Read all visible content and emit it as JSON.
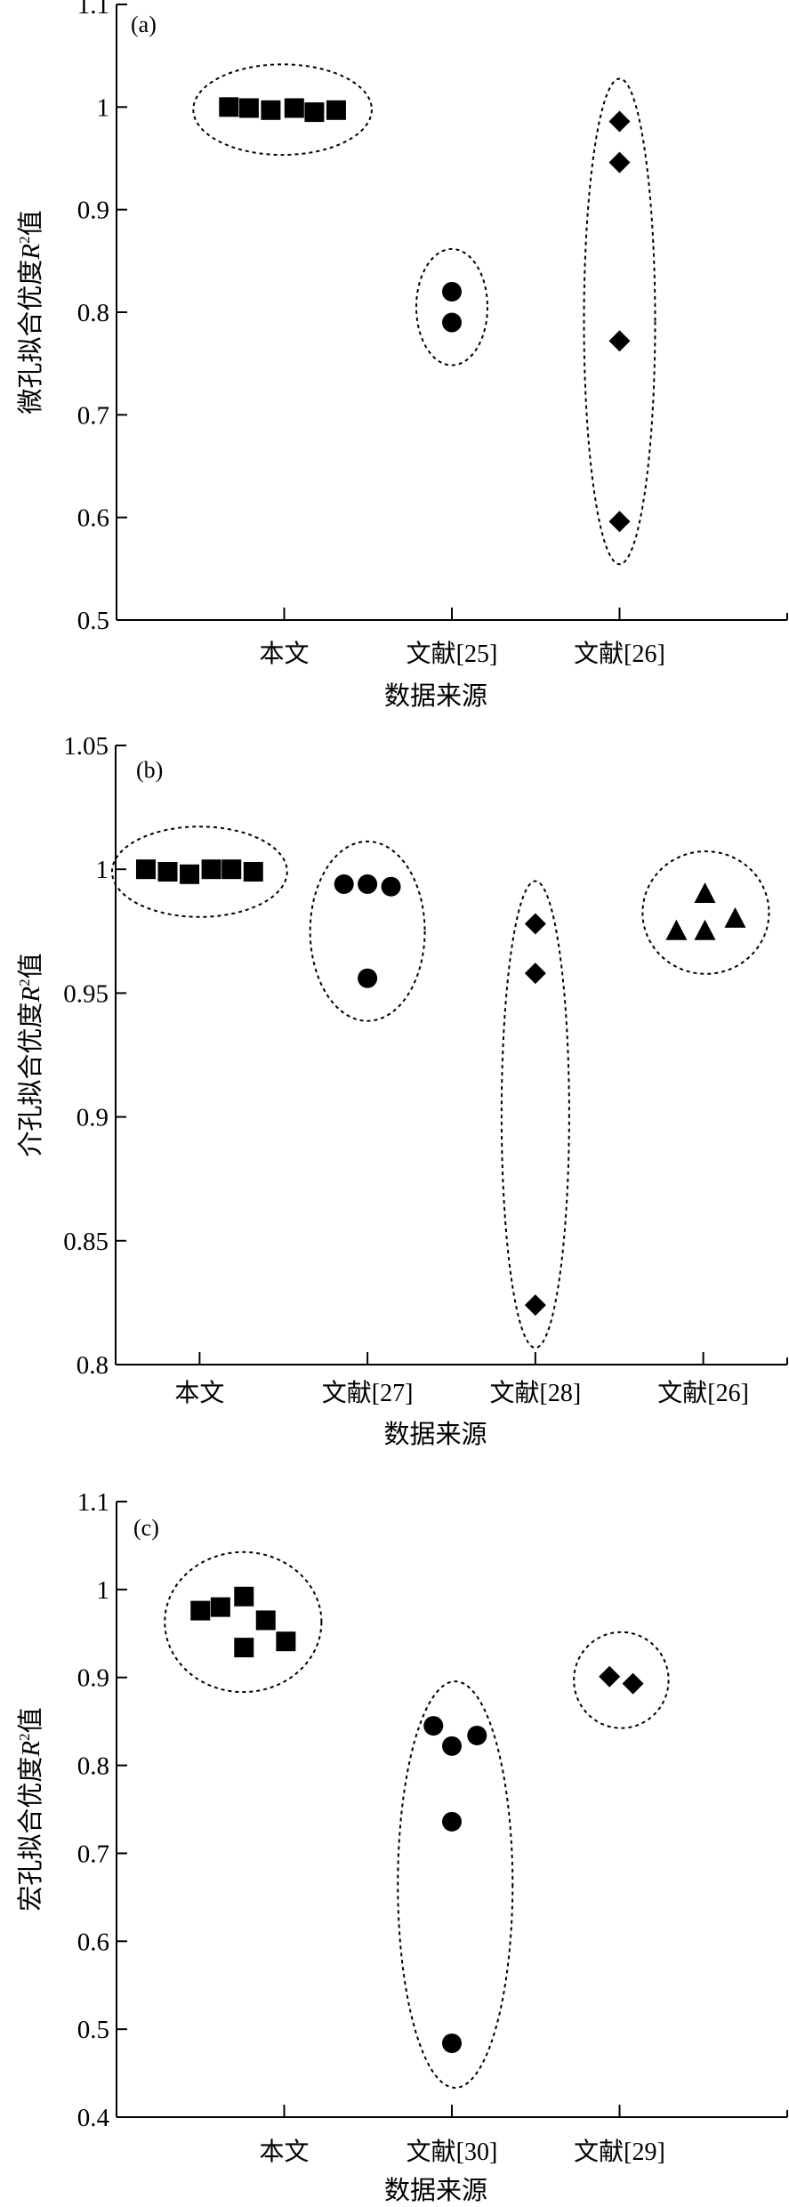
{
  "chart_data": [
    {
      "type": "scatter",
      "panel_label": "(a)",
      "ylabel_prefix": "微孔拟合优度",
      "ylabel_var": "R",
      "ylabel_sup": "2",
      "ylabel_suffix": "值",
      "xlabel": "数据来源",
      "categories": [
        "本文",
        "文献[25]",
        "文献[26]"
      ],
      "xlim": [
        0,
        4
      ],
      "ylim": [
        0.5,
        1.1
      ],
      "yticks": [
        0.5,
        0.6,
        0.7,
        0.8,
        0.9,
        1.0,
        1.1
      ],
      "ytick_labels": [
        "0.5",
        "0.6",
        "0.7",
        "0.8",
        "0.9",
        "1",
        "1.1"
      ],
      "grid": false,
      "series": [
        {
          "name": "本文",
          "marker": "square",
          "x": [
            0.67,
            0.79,
            0.92,
            1.06,
            1.18,
            1.31
          ],
          "y": [
            1.0,
            0.999,
            0.997,
            0.999,
            0.995,
            0.997
          ]
        },
        {
          "name": "文献[25]",
          "marker": "circle",
          "x": [
            2,
            2
          ],
          "y": [
            0.82,
            0.79
          ]
        },
        {
          "name": "文献[26]",
          "marker": "diamond",
          "x": [
            3,
            3,
            3,
            3
          ],
          "y": [
            0.986,
            0.946,
            0.772,
            0.596
          ]
        }
      ]
    },
    {
      "type": "scatter",
      "panel_label": "(b)",
      "ylabel_prefix": "介孔拟合优度",
      "ylabel_var": "R",
      "ylabel_sup": "2",
      "ylabel_suffix": "值",
      "xlabel": "数据来源",
      "categories": [
        "本文",
        "文献[27]",
        "文献[28]",
        "文献[26]"
      ],
      "xlim": [
        0.5,
        4.5
      ],
      "ylim": [
        0.8,
        1.05
      ],
      "yticks": [
        0.8,
        0.85,
        0.9,
        0.95,
        1.0,
        1.05
      ],
      "ytick_labels": [
        "0.8",
        "0.85",
        "0.9",
        "0.95",
        "1",
        "1.05"
      ],
      "grid": false,
      "series": [
        {
          "name": "本文",
          "marker": "square",
          "x": [
            0.68,
            0.81,
            0.94,
            1.07,
            1.19,
            1.32
          ],
          "y": [
            1.0,
            0.999,
            0.998,
            1.0,
            1.0,
            0.999
          ]
        },
        {
          "name": "文献[27]",
          "marker": "circle",
          "x": [
            1.86,
            2.0,
            2.14,
            2.0
          ],
          "y": [
            0.994,
            0.994,
            0.993,
            0.956
          ]
        },
        {
          "name": "文献[28]",
          "marker": "diamond",
          "x": [
            3,
            3,
            3
          ],
          "y": [
            0.978,
            0.958,
            0.824
          ]
        },
        {
          "name": "文献[26]",
          "marker": "triangle",
          "x": [
            3.84,
            4.01,
            4.01,
            4.19
          ],
          "y": [
            0.975,
            0.99,
            0.975,
            0.98
          ]
        }
      ]
    },
    {
      "type": "scatter",
      "panel_label": "(c)",
      "ylabel_prefix": "宏孔拟合优度",
      "ylabel_var": "R",
      "ylabel_sup": "2",
      "ylabel_suffix": "值",
      "xlabel": "数据来源",
      "categories": [
        "本文",
        "文献[30]",
        "文献[29]"
      ],
      "xlim": [
        0,
        4
      ],
      "ylim": [
        0.4,
        1.1
      ],
      "yticks": [
        0.4,
        0.5,
        0.6,
        0.7,
        0.8,
        0.9,
        1.0,
        1.1
      ],
      "ytick_labels": [
        "0.4",
        "0.5",
        "0.6",
        "0.7",
        "0.8",
        "0.9",
        "1",
        "1.1"
      ],
      "grid": false,
      "series": [
        {
          "name": "本文",
          "marker": "square",
          "x": [
            0.5,
            0.62,
            0.76,
            0.89,
            0.76,
            1.01
          ],
          "y": [
            0.976,
            0.98,
            0.992,
            0.965,
            0.934,
            0.941
          ]
        },
        {
          "name": "文献[30]",
          "marker": "circle",
          "x": [
            1.89,
            2.0,
            2.15,
            2.0,
            2.0
          ],
          "y": [
            0.845,
            0.822,
            0.834,
            0.736,
            0.484
          ]
        },
        {
          "name": "文献[29]",
          "marker": "diamond",
          "x": [
            2.94,
            3.08
          ],
          "y": [
            0.901,
            0.893
          ]
        }
      ]
    }
  ]
}
